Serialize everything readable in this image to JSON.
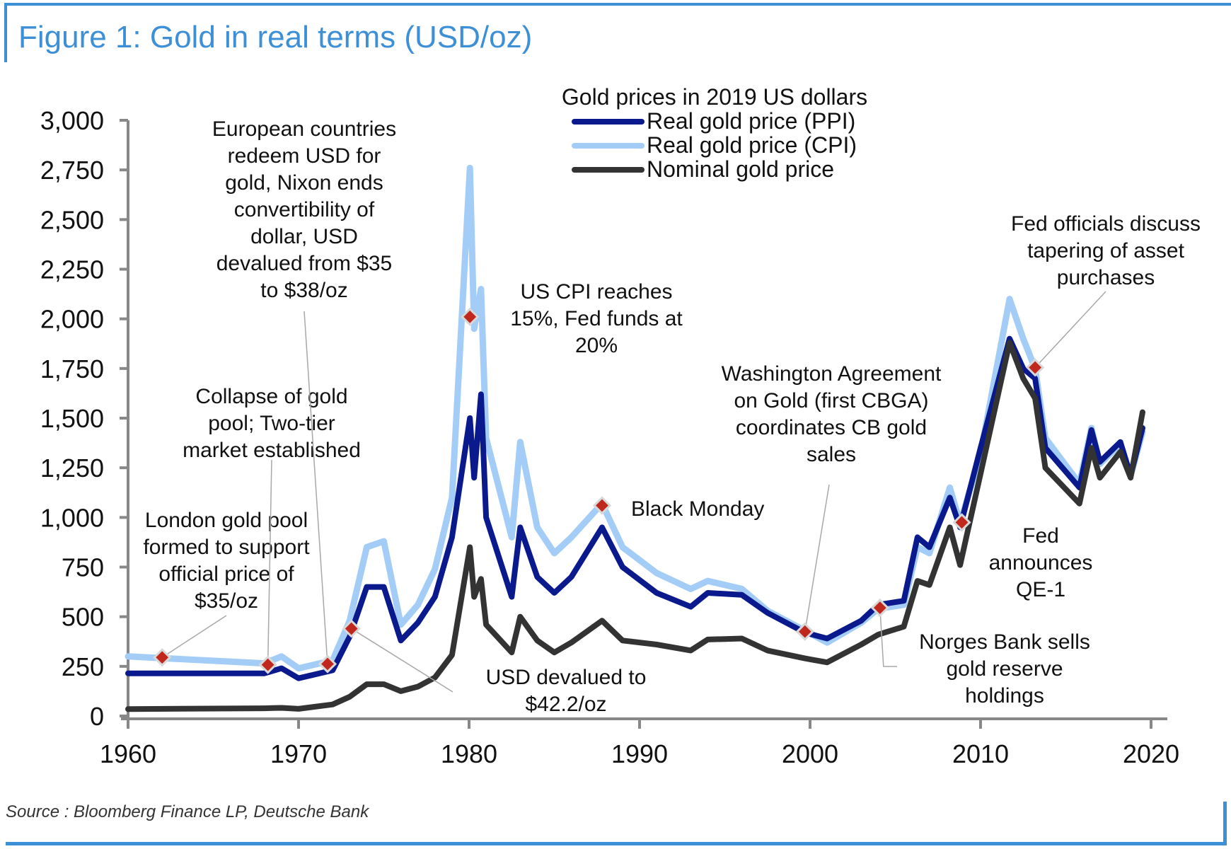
{
  "title": "Figure 1: Gold in real terms (USD/oz)",
  "source": "Source : Bloomberg Finance LP, Deutsche Bank",
  "colors": {
    "frame": "#3d8fd6",
    "ppi": "#0a1a8c",
    "cpi": "#a3cdf6",
    "nominal": "#333333",
    "marker": "#c0281e",
    "leader": "#a8a8a8"
  },
  "chart_data": {
    "type": "line",
    "title": "Figure 1: Gold in real terms (USD/oz)",
    "xlabel": "",
    "ylabel": "",
    "xlim": [
      1960,
      2020
    ],
    "ylim": [
      0,
      3000
    ],
    "grid": false,
    "x_ticks": [
      "1960",
      "1970",
      "1980",
      "1990",
      "2000",
      "2010",
      "2020"
    ],
    "y_ticks": [
      "0",
      "250",
      "500",
      "750",
      "1,000",
      "1,250",
      "1,500",
      "1,750",
      "2,000",
      "2,250",
      "2,500",
      "2,750",
      "3,000"
    ],
    "legend": {
      "title": "Gold prices in 2019 US dollars",
      "placement": "top-center",
      "entries": [
        "Real gold price (PPI)",
        "Real gold price (CPI)",
        "Nominal gold price"
      ]
    },
    "x": [
      1960,
      1968,
      1969,
      1970,
      1972,
      1973,
      1974,
      1975,
      1976,
      1977,
      1978,
      1979,
      1980.05,
      1980.3,
      1980.7,
      1981,
      1982.5,
      1983,
      1984,
      1985,
      1986,
      1987.8,
      1989,
      1991,
      1993,
      1994,
      1996,
      1997.5,
      1999.7,
      2001,
      2003,
      2004,
      2005.5,
      2006.3,
      2007,
      2008.2,
      2008.8,
      2010,
      2011.7,
      2012.5,
      2013.2,
      2013.8,
      2015.8,
      2016.5,
      2017,
      2018.2,
      2018.8,
      2019.5
    ],
    "series": [
      {
        "name": "Real gold price (CPI)",
        "values": [
          300,
          265,
          300,
          240,
          280,
          480,
          850,
          880,
          460,
          560,
          740,
          1100,
          2760,
          1950,
          2150,
          1400,
          900,
          1380,
          950,
          820,
          900,
          1070,
          850,
          720,
          640,
          680,
          640,
          530,
          430,
          370,
          470,
          540,
          560,
          850,
          820,
          1150,
          970,
          1320,
          2100,
          1900,
          1750,
          1400,
          1170,
          1450,
          1270,
          1370,
          1210,
          1430
        ]
      },
      {
        "name": "Real gold price (PPI)",
        "values": [
          215,
          215,
          240,
          190,
          230,
          400,
          650,
          650,
          380,
          470,
          600,
          900,
          1500,
          1200,
          1620,
          1000,
          600,
          950,
          700,
          620,
          700,
          950,
          750,
          620,
          550,
          620,
          610,
          520,
          420,
          390,
          480,
          560,
          580,
          900,
          850,
          1100,
          950,
          1350,
          1900,
          1750,
          1700,
          1350,
          1150,
          1440,
          1280,
          1380,
          1210,
          1450
        ]
      },
      {
        "name": "Nominal gold price",
        "values": [
          35,
          39,
          41,
          36,
          58,
          97,
          160,
          160,
          125,
          148,
          194,
          307,
          850,
          600,
          690,
          460,
          320,
          500,
          380,
          320,
          370,
          480,
          380,
          360,
          330,
          385,
          390,
          330,
          290,
          270,
          360,
          410,
          450,
          680,
          660,
          950,
          760,
          1220,
          1880,
          1700,
          1600,
          1250,
          1070,
          1350,
          1200,
          1330,
          1200,
          1530
        ]
      }
    ],
    "annotations": [
      {
        "year": 1962,
        "value": 295,
        "lines": [
          "London gold pool",
          "formed to support",
          "official price of",
          "$35/oz"
        ]
      },
      {
        "year": 1968.2,
        "value": 258,
        "lines": [
          "Collapse of gold",
          "pool; Two-tier",
          "market established"
        ]
      },
      {
        "year": 1971.7,
        "value": 262,
        "lines": [
          "European countries",
          "redeem USD for",
          "gold, Nixon ends",
          "convertibility of",
          "dollar, USD",
          "devalued from $35",
          "to $38/oz"
        ]
      },
      {
        "year": 1973.1,
        "value": 440,
        "lines": [
          "USD devalued to",
          "$42.2/oz"
        ]
      },
      {
        "year": 1980.05,
        "value": 2010,
        "lines": [
          "US CPI reaches",
          "15%, Fed funds at",
          "20%"
        ]
      },
      {
        "year": 1987.8,
        "value": 1060,
        "lines": [
          "Black Monday"
        ]
      },
      {
        "year": 1999.7,
        "value": 425,
        "lines": [
          "Washington Agreement",
          "on Gold (first CBGA)",
          "coordinates CB gold",
          "sales"
        ]
      },
      {
        "year": 2004.1,
        "value": 545,
        "lines": [
          "Norges Bank sells",
          "gold reserve",
          "holdings"
        ]
      },
      {
        "year": 2008.9,
        "value": 975,
        "lines": [
          "Fed",
          "announces",
          "QE-1"
        ]
      },
      {
        "year": 2013.2,
        "value": 1755,
        "lines": [
          "Fed officials discuss",
          "tapering of asset",
          "purchases"
        ]
      }
    ]
  }
}
